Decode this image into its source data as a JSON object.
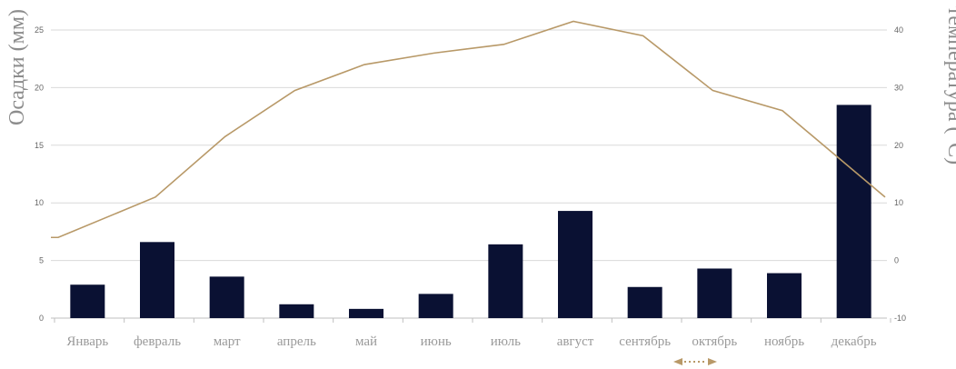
{
  "chart_data": {
    "type": "bar",
    "categories": [
      "Январь",
      "февраль",
      "март",
      "апрель",
      "май",
      "июнь",
      "июль",
      "август",
      "сентябрь",
      "октябрь",
      "ноябрь",
      "декабрь"
    ],
    "series": [
      {
        "type": "bar",
        "axis": "left",
        "values": [
          2.9,
          6.6,
          3.6,
          1.2,
          0.8,
          2.1,
          6.4,
          9.3,
          2.7,
          4.3,
          3.9,
          18.5
        ]
      },
      {
        "type": "line",
        "axis": "right",
        "values": [
          4,
          11,
          21.5,
          29.5,
          34,
          36,
          37.5,
          41.5,
          39,
          29.5,
          26,
          11
        ]
      }
    ],
    "ylabel": "Осадки (мм)",
    "y2label": "температура (°C)",
    "ylim": [
      0,
      25
    ],
    "y2lim": [
      -10,
      40
    ],
    "yticks": [
      "0",
      "5",
      "10",
      "15",
      "20",
      "25"
    ],
    "y2ticks": [
      "-10",
      "0",
      "10",
      "20",
      "30",
      "40"
    ],
    "grid": true,
    "colors": {
      "bar": "#0a1133",
      "line": "#b89968",
      "arrow": "#b89968"
    }
  },
  "scroll_arrow_icon": "double-arrow-icon"
}
